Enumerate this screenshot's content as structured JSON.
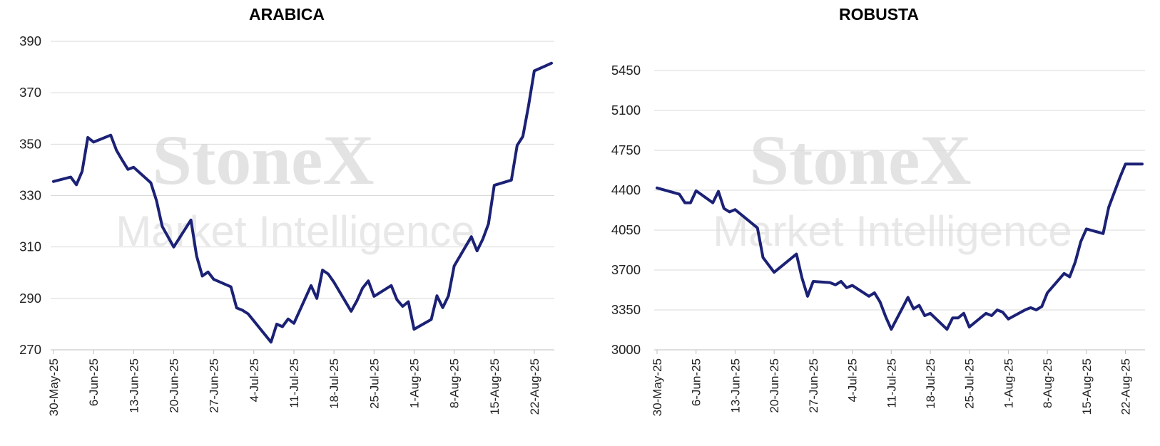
{
  "colors": {
    "line": "#1b2175",
    "grid": "#d9d9d9",
    "watermark": "#e3e3e3"
  },
  "watermark": {
    "brand": "StoneX",
    "sub": "Market Intelligence"
  },
  "chart_data": [
    {
      "type": "line",
      "title": "ARABICA",
      "xlabel": "",
      "ylabel": "",
      "ylim": [
        270,
        390
      ],
      "y_ticks": [
        "270",
        "290",
        "310",
        "330",
        "350",
        "370",
        "390"
      ],
      "x_ticks": [
        "30-May-25",
        "6-Jun-25",
        "13-Jun-25",
        "20-Jun-25",
        "27-Jun-25",
        "4-Jul-25",
        "11-Jul-25",
        "18-Jul-25",
        "25-Jul-25",
        "1-Aug-25",
        "8-Aug-25",
        "15-Aug-25",
        "22-Aug-25"
      ],
      "grid": true,
      "series": [
        {
          "x": [
            "2025-05-30",
            "2025-06-02",
            "2025-06-03",
            "2025-06-04",
            "2025-06-05",
            "2025-06-06",
            "2025-06-09",
            "2025-06-10",
            "2025-06-11",
            "2025-06-12",
            "2025-06-13",
            "2025-06-16",
            "2025-06-17",
            "2025-06-18",
            "2025-06-20",
            "2025-06-23",
            "2025-06-24",
            "2025-06-25",
            "2025-06-26",
            "2025-06-27",
            "2025-06-30",
            "2025-07-01",
            "2025-07-02",
            "2025-07-03",
            "2025-07-07",
            "2025-07-08",
            "2025-07-09",
            "2025-07-10",
            "2025-07-11",
            "2025-07-14",
            "2025-07-15",
            "2025-07-16",
            "2025-07-17",
            "2025-07-18",
            "2025-07-21",
            "2025-07-22",
            "2025-07-23",
            "2025-07-24",
            "2025-07-25",
            "2025-07-28",
            "2025-07-29",
            "2025-07-30",
            "2025-07-31",
            "2025-08-01",
            "2025-08-04",
            "2025-08-05",
            "2025-08-06",
            "2025-08-07",
            "2025-08-08",
            "2025-08-11",
            "2025-08-12",
            "2025-08-13",
            "2025-08-14",
            "2025-08-15",
            "2025-08-18",
            "2025-08-19",
            "2025-08-20",
            "2025-08-21",
            "2025-08-22",
            "2025-08-25"
          ],
          "y": [
            335.5,
            337.2,
            334.2,
            339.4,
            352.6,
            350.8,
            353.5,
            347.6,
            343.8,
            340.2,
            341.0,
            335.0,
            328.0,
            318.0,
            310.0,
            320.5,
            306.5,
            298.7,
            300.3,
            297.4,
            294.5,
            286.3,
            285.4,
            284.0,
            273.0,
            280.0,
            279.0,
            282.0,
            280.3,
            295.0,
            290.0,
            301.0,
            299.5,
            296.3,
            285.0,
            289.0,
            294.0,
            296.8,
            290.8,
            295.0,
            289.5,
            286.9,
            288.7,
            278.0,
            281.8,
            291.0,
            286.4,
            291.0,
            302.6,
            314.0,
            308.5,
            313.0,
            319.0,
            334.0,
            336.0,
            349.5,
            353.0,
            365.0,
            378.5,
            381.5
          ]
        }
      ]
    },
    {
      "type": "line",
      "title": "ROBUSTA",
      "xlabel": "",
      "ylabel": "",
      "ylim": [
        3000,
        5450
      ],
      "y_ticks": [
        "3000",
        "3350",
        "3700",
        "4050",
        "4400",
        "4750",
        "5100",
        "5450"
      ],
      "x_ticks": [
        "30-May-25",
        "6-Jun-25",
        "13-Jun-25",
        "20-Jun-25",
        "27-Jun-25",
        "4-Jul-25",
        "11-Jul-25",
        "18-Jul-25",
        "25-Jul-25",
        "1-Aug-25",
        "8-Aug-25",
        "15-Aug-25",
        "22-Aug-25"
      ],
      "grid": true,
      "series": [
        {
          "x": [
            "2025-05-30",
            "2025-06-03",
            "2025-06-04",
            "2025-06-05",
            "2025-06-06",
            "2025-06-09",
            "2025-06-10",
            "2025-06-11",
            "2025-06-12",
            "2025-06-13",
            "2025-06-17",
            "2025-06-18",
            "2025-06-20",
            "2025-06-24",
            "2025-06-25",
            "2025-06-26",
            "2025-06-27",
            "2025-06-30",
            "2025-07-01",
            "2025-07-02",
            "2025-07-03",
            "2025-07-04",
            "2025-07-07",
            "2025-07-08",
            "2025-07-09",
            "2025-07-10",
            "2025-07-11",
            "2025-07-14",
            "2025-07-15",
            "2025-07-16",
            "2025-07-17",
            "2025-07-18",
            "2025-07-21",
            "2025-07-22",
            "2025-07-23",
            "2025-07-24",
            "2025-07-25",
            "2025-07-28",
            "2025-07-29",
            "2025-07-30",
            "2025-07-31",
            "2025-08-01",
            "2025-08-04",
            "2025-08-05",
            "2025-08-06",
            "2025-08-07",
            "2025-08-08",
            "2025-08-11",
            "2025-08-12",
            "2025-08-13",
            "2025-08-14",
            "2025-08-15",
            "2025-08-18",
            "2025-08-19",
            "2025-08-20",
            "2025-08-21",
            "2025-08-22",
            "2025-08-25"
          ],
          "y": [
            4420,
            4365,
            4290,
            4290,
            4395,
            4290,
            4390,
            4240,
            4210,
            4230,
            4070,
            3810,
            3680,
            3840,
            3630,
            3470,
            3600,
            3590,
            3570,
            3600,
            3545,
            3565,
            3470,
            3500,
            3420,
            3290,
            3180,
            3460,
            3360,
            3390,
            3300,
            3320,
            3180,
            3280,
            3280,
            3320,
            3200,
            3320,
            3300,
            3350,
            3330,
            3270,
            3350,
            3370,
            3350,
            3380,
            3500,
            3670,
            3640,
            3770,
            3950,
            4060,
            4020,
            4250,
            4380,
            4510,
            4630,
            4630
          ]
        }
      ]
    }
  ]
}
